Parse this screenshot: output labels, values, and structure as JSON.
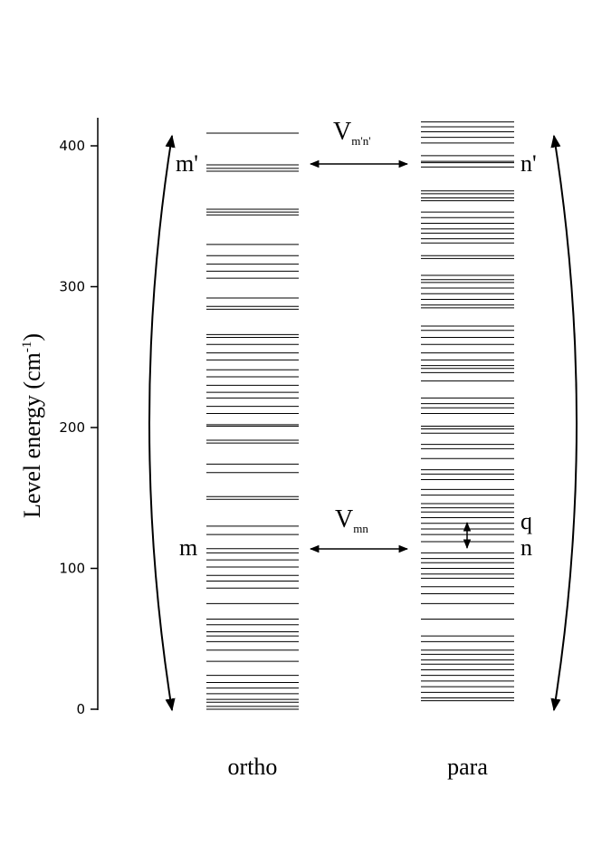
{
  "chart_data": {
    "type": "levels",
    "ylabel": [
      "Level energy (cm",
      "-1",
      ")"
    ],
    "ylim": [
      0,
      420
    ],
    "yticks": [
      0,
      100,
      200,
      300,
      400
    ],
    "series": [
      {
        "name": "ortho",
        "color": "#000000",
        "values": [
          409,
          386.5,
          384,
          382,
          355,
          353,
          351,
          330,
          322,
          316,
          311,
          306,
          292,
          286,
          284,
          266,
          264,
          259,
          253,
          248,
          241,
          236,
          230,
          225,
          221,
          215,
          210,
          202,
          201,
          191,
          189,
          174,
          168,
          151,
          149,
          130,
          124,
          114,
          111,
          106,
          101,
          95,
          91,
          86,
          75,
          64,
          60,
          55,
          52,
          48,
          42,
          34,
          24,
          19,
          15,
          11,
          7,
          5,
          2,
          0
        ]
      },
      {
        "name": "para",
        "color": "#000000",
        "values": [
          417,
          413.5,
          410,
          406,
          402,
          393,
          389,
          388,
          385,
          368,
          366,
          363,
          361,
          353,
          349,
          345,
          341,
          338,
          334,
          331,
          322,
          320,
          308,
          305,
          303,
          299,
          295,
          291,
          287,
          285,
          272,
          269,
          264,
          259,
          253,
          248,
          244,
          242,
          239,
          233,
          221,
          217,
          214,
          210,
          201,
          199,
          196,
          188,
          185,
          178,
          170,
          167,
          163,
          156,
          152,
          146,
          143,
          140,
          136,
          132,
          128,
          124,
          119,
          111,
          107,
          104,
          100,
          96,
          93,
          87,
          82,
          75,
          64,
          52,
          48,
          42,
          39,
          35,
          32,
          28,
          24,
          20,
          16,
          12,
          8,
          6
        ]
      }
    ],
    "annotations": {
      "m_prime": "m'",
      "n_prime": "n'",
      "m": "m",
      "n": "n",
      "q": "q",
      "v_top": [
        "V",
        "m'n'"
      ],
      "v_bottom": [
        "V",
        "mn"
      ]
    }
  }
}
